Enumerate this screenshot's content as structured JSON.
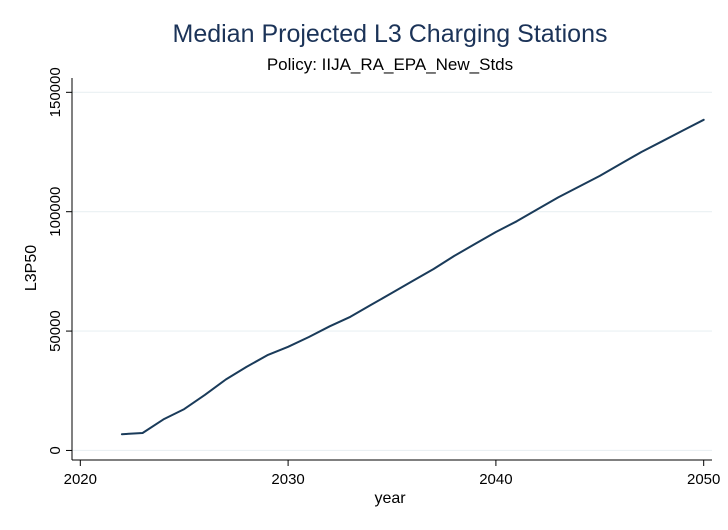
{
  "chart_data": {
    "type": "line",
    "title": "Median Projected L3 Charging Stations",
    "subtitle": "Policy: IIJA_RA_EPA_New_Stds",
    "xlabel": "year",
    "ylabel": "L3P50",
    "xlim": [
      2019.6,
      2050.4
    ],
    "ylim": [
      -4000,
      156000
    ],
    "x_ticks": [
      2020,
      2030,
      2040,
      2050
    ],
    "x_tick_labels": [
      "2020",
      "2030",
      "2040",
      "2050"
    ],
    "y_ticks": [
      0,
      50000,
      100000,
      150000
    ],
    "y_tick_labels": [
      "0",
      "50000",
      "100000",
      "150000"
    ],
    "grid": true,
    "line_color": "#1a3b5a",
    "series": [
      {
        "x": [
          2022,
          2023,
          2024,
          2025,
          2026,
          2027,
          2028,
          2029,
          2030,
          2031,
          2032,
          2033,
          2034,
          2035,
          2036,
          2037,
          2038,
          2039,
          2040,
          2041,
          2042,
          2043,
          2044,
          2045,
          2046,
          2047,
          2048,
          2049,
          2050
        ],
        "values": [
          6800,
          7300,
          13000,
          17300,
          23300,
          29700,
          35000,
          39900,
          43400,
          47500,
          52000,
          56000,
          61000,
          66000,
          71000,
          76000,
          81500,
          86500,
          91500,
          96000,
          101000,
          106000,
          110500,
          115000,
          120000,
          125000,
          129500,
          134000,
          138500
        ]
      }
    ]
  }
}
